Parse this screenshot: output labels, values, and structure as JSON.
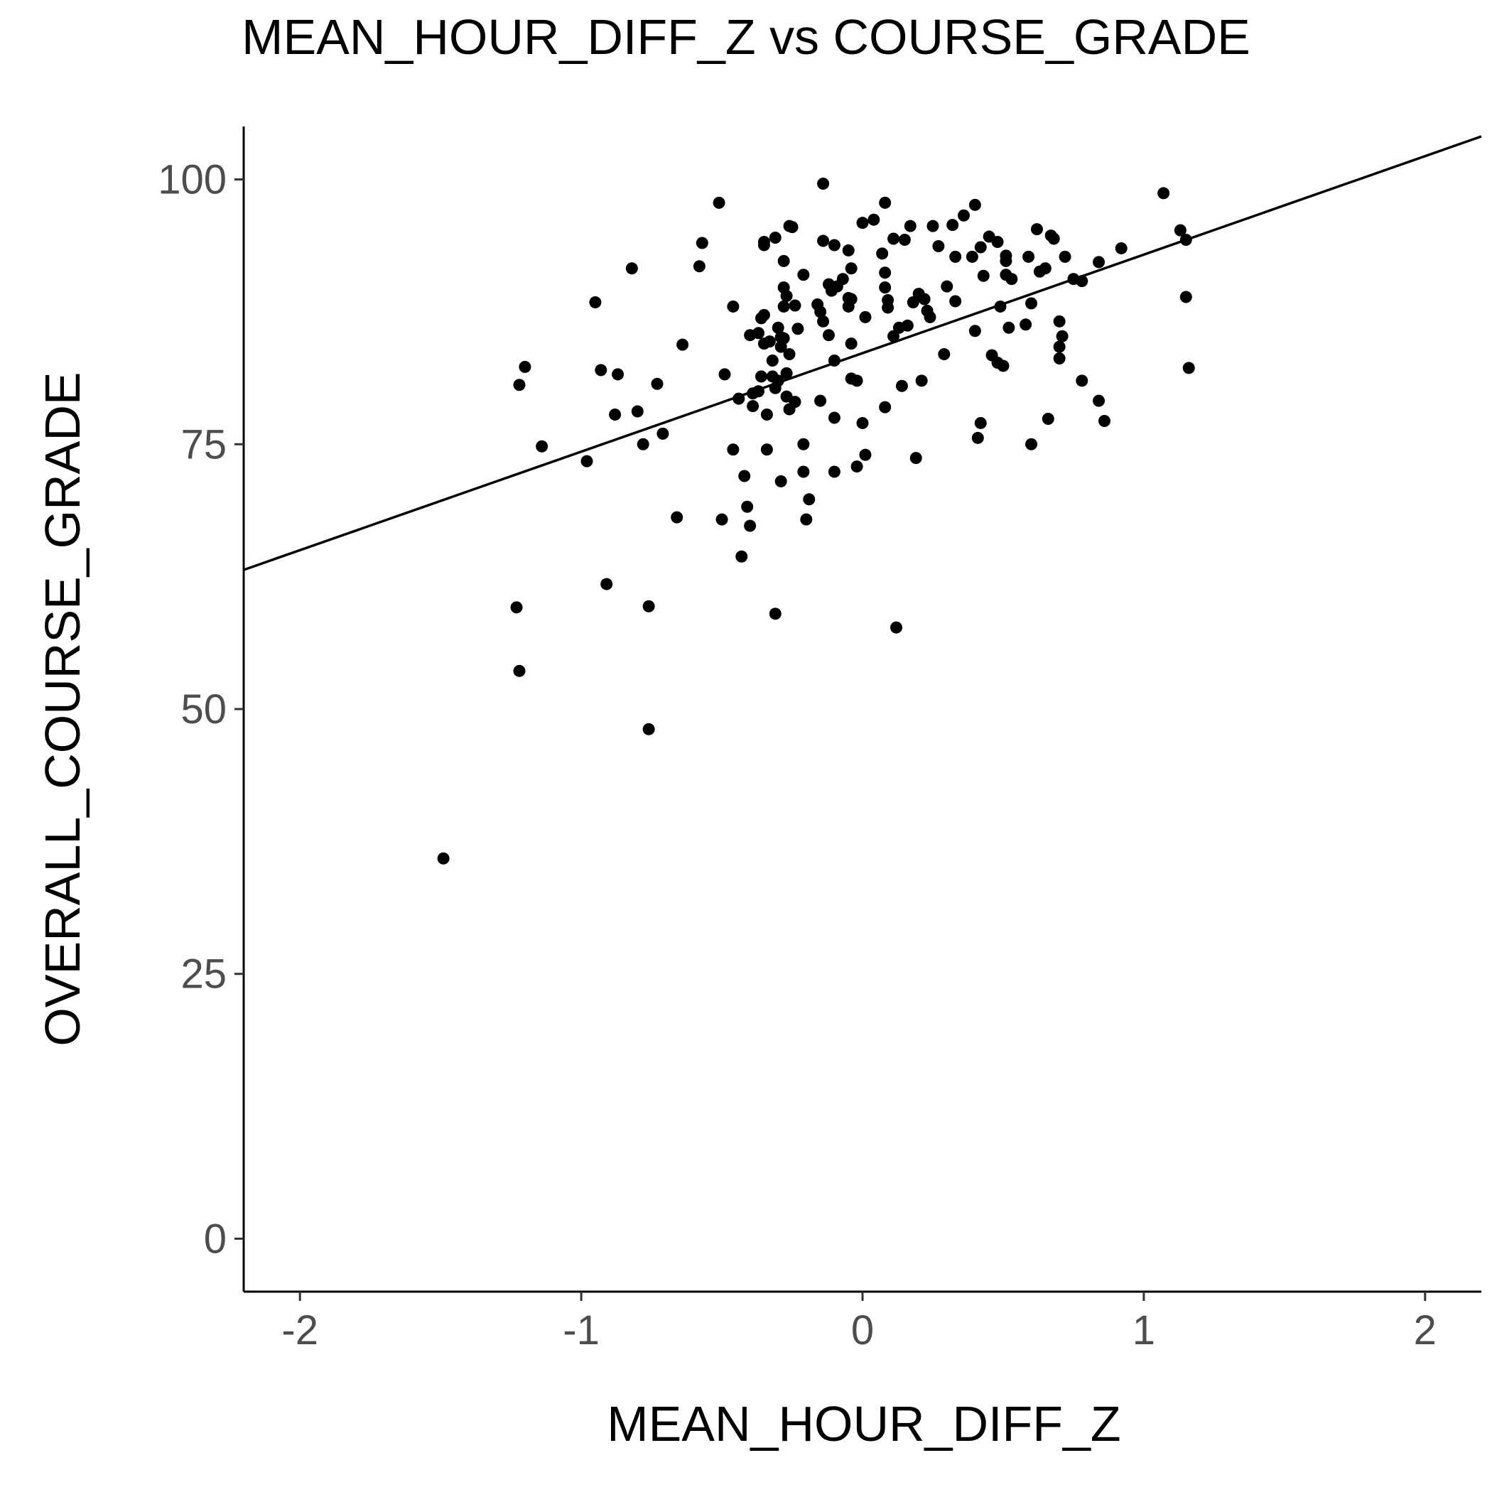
{
  "chart_data": {
    "type": "scatter",
    "title": "MEAN_HOUR_DIFF_Z vs COURSE_GRADE",
    "xlabel": "MEAN_HOUR_DIFF_Z",
    "ylabel": "OVERALL_COURSE_GRADE",
    "xlim": [
      -2.2,
      2.2
    ],
    "ylim": [
      -5,
      105
    ],
    "xticks": [
      -2,
      -1,
      0,
      1,
      2
    ],
    "yticks": [
      0,
      25,
      50,
      75,
      100
    ],
    "grid": false,
    "legend": "none",
    "trend_line": {
      "intercept": 83.6,
      "slope": 9.3
    },
    "points": [
      [
        -1.49,
        35.9
      ],
      [
        -1.22,
        53.6
      ],
      [
        -1.23,
        59.6
      ],
      [
        -1.22,
        80.6
      ],
      [
        -1.2,
        82.3
      ],
      [
        -1.14,
        74.8
      ],
      [
        -0.98,
        73.4
      ],
      [
        -0.95,
        88.4
      ],
      [
        -0.93,
        82.0
      ],
      [
        -0.91,
        61.8
      ],
      [
        -0.88,
        77.8
      ],
      [
        -0.87,
        81.6
      ],
      [
        -0.82,
        91.6
      ],
      [
        -0.8,
        78.1
      ],
      [
        -0.78,
        75.0
      ],
      [
        -0.76,
        48.1
      ],
      [
        -0.76,
        59.7
      ],
      [
        -0.73,
        80.7
      ],
      [
        -0.71,
        76.0
      ],
      [
        -0.66,
        68.1
      ],
      [
        -0.64,
        84.4
      ],
      [
        -0.58,
        91.8
      ],
      [
        -0.57,
        94.0
      ],
      [
        -0.51,
        97.8
      ],
      [
        -0.5,
        67.9
      ],
      [
        -0.49,
        81.6
      ],
      [
        -0.46,
        74.5
      ],
      [
        -0.46,
        88.0
      ],
      [
        -0.44,
        79.3
      ],
      [
        -0.43,
        64.4
      ],
      [
        -0.42,
        72.0
      ],
      [
        -0.41,
        69.1
      ],
      [
        -0.4,
        67.3
      ],
      [
        -0.4,
        85.3
      ],
      [
        -0.39,
        78.6
      ],
      [
        -0.39,
        79.8
      ],
      [
        -0.37,
        80.0
      ],
      [
        -0.37,
        85.5
      ],
      [
        -0.36,
        81.4
      ],
      [
        -0.36,
        86.9
      ],
      [
        -0.35,
        87.2
      ],
      [
        -0.35,
        93.8
      ],
      [
        -0.35,
        94.1
      ],
      [
        -0.35,
        84.5
      ],
      [
        -0.34,
        77.8
      ],
      [
        -0.34,
        74.5
      ],
      [
        -0.33,
        84.7
      ],
      [
        -0.32,
        81.4
      ],
      [
        -0.32,
        82.9
      ],
      [
        -0.31,
        80.3
      ],
      [
        -0.31,
        59.0
      ],
      [
        -0.31,
        94.5
      ],
      [
        -0.3,
        86.0
      ],
      [
        -0.3,
        81.0
      ],
      [
        -0.29,
        71.5
      ],
      [
        -0.29,
        85.1
      ],
      [
        -0.29,
        84.2
      ],
      [
        -0.28,
        89.8
      ],
      [
        -0.28,
        88.0
      ],
      [
        -0.28,
        92.3
      ],
      [
        -0.28,
        85.0
      ],
      [
        -0.27,
        89.0
      ],
      [
        -0.27,
        79.5
      ],
      [
        -0.27,
        81.7
      ],
      [
        -0.26,
        83.5
      ],
      [
        -0.26,
        78.3
      ],
      [
        -0.26,
        95.6
      ],
      [
        -0.25,
        95.5
      ],
      [
        -0.24,
        88.1
      ],
      [
        -0.24,
        79.0
      ],
      [
        -0.23,
        85.9
      ],
      [
        -0.21,
        91.0
      ],
      [
        -0.21,
        72.4
      ],
      [
        -0.21,
        75.0
      ],
      [
        -0.2,
        67.9
      ],
      [
        -0.19,
        69.8
      ],
      [
        -0.16,
        88.2
      ],
      [
        -0.15,
        79.1
      ],
      [
        -0.15,
        87.5
      ],
      [
        -0.14,
        86.6
      ],
      [
        -0.14,
        99.6
      ],
      [
        -0.14,
        94.2
      ],
      [
        -0.12,
        85.3
      ],
      [
        -0.12,
        90.1
      ],
      [
        -0.11,
        89.5
      ],
      [
        -0.1,
        72.4
      ],
      [
        -0.1,
        82.9
      ],
      [
        -0.1,
        77.5
      ],
      [
        -0.1,
        93.8
      ],
      [
        -0.09,
        89.9
      ],
      [
        -0.07,
        90.6
      ],
      [
        -0.05,
        88.0
      ],
      [
        -0.05,
        88.8
      ],
      [
        -0.05,
        93.3
      ],
      [
        -0.04,
        91.6
      ],
      [
        -0.04,
        88.7
      ],
      [
        -0.04,
        81.2
      ],
      [
        -0.04,
        84.5
      ],
      [
        -0.02,
        81.0
      ],
      [
        -0.02,
        72.9
      ],
      [
        0.0,
        95.9
      ],
      [
        0.0,
        77.0
      ],
      [
        0.01,
        74.0
      ],
      [
        0.01,
        87.0
      ],
      [
        0.04,
        96.2
      ],
      [
        0.07,
        93.0
      ],
      [
        0.08,
        97.8
      ],
      [
        0.08,
        91.2
      ],
      [
        0.08,
        89.8
      ],
      [
        0.08,
        78.5
      ],
      [
        0.09,
        87.9
      ],
      [
        0.09,
        88.6
      ],
      [
        0.11,
        94.4
      ],
      [
        0.11,
        85.2
      ],
      [
        0.12,
        57.7
      ],
      [
        0.13,
        86.0
      ],
      [
        0.14,
        80.5
      ],
      [
        0.15,
        94.3
      ],
      [
        0.16,
        86.2
      ],
      [
        0.17,
        95.6
      ],
      [
        0.18,
        88.4
      ],
      [
        0.19,
        73.7
      ],
      [
        0.2,
        89.2
      ],
      [
        0.21,
        81.0
      ],
      [
        0.22,
        88.7
      ],
      [
        0.23,
        87.6
      ],
      [
        0.24,
        87.0
      ],
      [
        0.25,
        95.6
      ],
      [
        0.27,
        93.7
      ],
      [
        0.29,
        83.5
      ],
      [
        0.3,
        89.9
      ],
      [
        0.32,
        95.7
      ],
      [
        0.33,
        92.7
      ],
      [
        0.33,
        88.5
      ],
      [
        0.36,
        96.6
      ],
      [
        0.39,
        92.7
      ],
      [
        0.4,
        97.6
      ],
      [
        0.4,
        85.7
      ],
      [
        0.41,
        75.6
      ],
      [
        0.42,
        93.6
      ],
      [
        0.42,
        77.0
      ],
      [
        0.43,
        90.9
      ],
      [
        0.45,
        94.6
      ],
      [
        0.46,
        83.4
      ],
      [
        0.48,
        82.7
      ],
      [
        0.48,
        94.1
      ],
      [
        0.49,
        88.0
      ],
      [
        0.5,
        82.4
      ],
      [
        0.51,
        92.8
      ],
      [
        0.51,
        92.3
      ],
      [
        0.51,
        91.0
      ],
      [
        0.52,
        86.0
      ],
      [
        0.53,
        90.6
      ],
      [
        0.58,
        86.3
      ],
      [
        0.59,
        92.7
      ],
      [
        0.6,
        75.0
      ],
      [
        0.6,
        88.3
      ],
      [
        0.62,
        95.3
      ],
      [
        0.63,
        91.3
      ],
      [
        0.65,
        91.6
      ],
      [
        0.66,
        77.4
      ],
      [
        0.67,
        94.7
      ],
      [
        0.68,
        94.4
      ],
      [
        0.7,
        86.6
      ],
      [
        0.7,
        84.2
      ],
      [
        0.7,
        83.1
      ],
      [
        0.71,
        85.2
      ],
      [
        0.72,
        92.7
      ],
      [
        0.75,
        90.6
      ],
      [
        0.78,
        90.4
      ],
      [
        0.78,
        81.0
      ],
      [
        0.84,
        92.2
      ],
      [
        0.84,
        79.1
      ],
      [
        0.86,
        77.2
      ],
      [
        0.92,
        93.5
      ],
      [
        1.07,
        98.7
      ],
      [
        1.13,
        95.2
      ],
      [
        1.15,
        94.3
      ],
      [
        1.15,
        88.9
      ],
      [
        1.16,
        82.2
      ]
    ]
  }
}
